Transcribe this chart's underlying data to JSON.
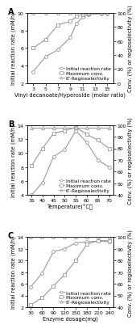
{
  "panel_A": {
    "xlabel": "Vinyl decanoate/Hyperoside (molar ratio)",
    "ylabel_left": "Initial reaction rate (mM/h)",
    "ylabel_right": "Conv. (%) or regioselectivity (%)",
    "label": "A",
    "x": [
      3,
      5,
      7,
      9,
      10,
      11,
      12,
      14,
      15
    ],
    "initial_rate": [
      3.3,
      5.0,
      5.8,
      7.2,
      8.8,
      9.5,
      9.8,
      9.9,
      9.9
    ],
    "max_conv": [
      50,
      62,
      83,
      88,
      95,
      98,
      99,
      99.5,
      99.5
    ],
    "regioselectivity": [
      100,
      100,
      100,
      100,
      100,
      100,
      100,
      100,
      100
    ],
    "ylim_left": [
      2,
      10
    ],
    "ylim_right": [
      0,
      100
    ],
    "xticks": [
      3,
      5,
      7,
      9,
      11,
      13,
      15
    ],
    "yticks_left": [
      2,
      4,
      6,
      8,
      10
    ],
    "yticks_right": [
      0,
      20,
      40,
      60,
      80,
      100
    ],
    "xlim": [
      2,
      16
    ]
  },
  "panel_B": {
    "xlabel": "Temperature(°C）",
    "ylabel_left": "Initial reaction rate (mM/h)",
    "ylabel_right": "Conv. (%) or regioselectivity (%)",
    "label": "B",
    "x": [
      35,
      40,
      45,
      50,
      55,
      60,
      65,
      70
    ],
    "initial_rate": [
      4.0,
      5.8,
      9.5,
      10.5,
      13.2,
      11.5,
      9.0,
      8.0
    ],
    "max_conv": [
      65,
      80,
      93,
      95,
      98,
      92,
      87,
      80
    ],
    "regioselectivity": [
      98,
      98,
      98,
      98,
      98,
      98,
      98,
      98
    ],
    "ylim_left": [
      4,
      14
    ],
    "ylim_right": [
      40,
      100
    ],
    "xticks": [
      35,
      40,
      45,
      50,
      55,
      60,
      65,
      70
    ],
    "yticks_left": [
      4,
      6,
      8,
      10,
      12,
      14
    ],
    "yticks_right": [
      40,
      50,
      60,
      70,
      80,
      90,
      100
    ],
    "xlim": [
      33,
      72
    ]
  },
  "panel_C": {
    "xlabel": "Enzyme dosage(mg)",
    "ylabel_left": "Initial reaction rate (mM/h)",
    "ylabel_right": "Conv. (%) or regioselectivity (%)",
    "label": "C",
    "x": [
      30,
      60,
      90,
      120,
      150,
      180,
      210,
      240
    ],
    "initial_rate": [
      5.5,
      7.8,
      11.5,
      12.0,
      13.0,
      13.2,
      13.3,
      13.2
    ],
    "max_conv": [
      42,
      48,
      58,
      68,
      80,
      94,
      97,
      97
    ],
    "regioselectivity": [
      100,
      100,
      100,
      100,
      100,
      100,
      100,
      100
    ],
    "ylim_left": [
      2,
      14
    ],
    "ylim_right": [
      40,
      100
    ],
    "xticks": [
      30,
      60,
      90,
      120,
      150,
      180,
      210,
      240
    ],
    "yticks_left": [
      2,
      4,
      6,
      8,
      10,
      12,
      14
    ],
    "yticks_right": [
      40,
      50,
      60,
      70,
      80,
      90,
      100
    ],
    "xlim": [
      20,
      250
    ]
  },
  "line_color": "#999999",
  "marker_circle": "o",
  "marker_square": "s",
  "marker_triangle": "^",
  "legend_fontsize": 4.2,
  "tick_fontsize": 4.5,
  "axis_label_fontsize": 4.8,
  "panel_label_fontsize": 7
}
